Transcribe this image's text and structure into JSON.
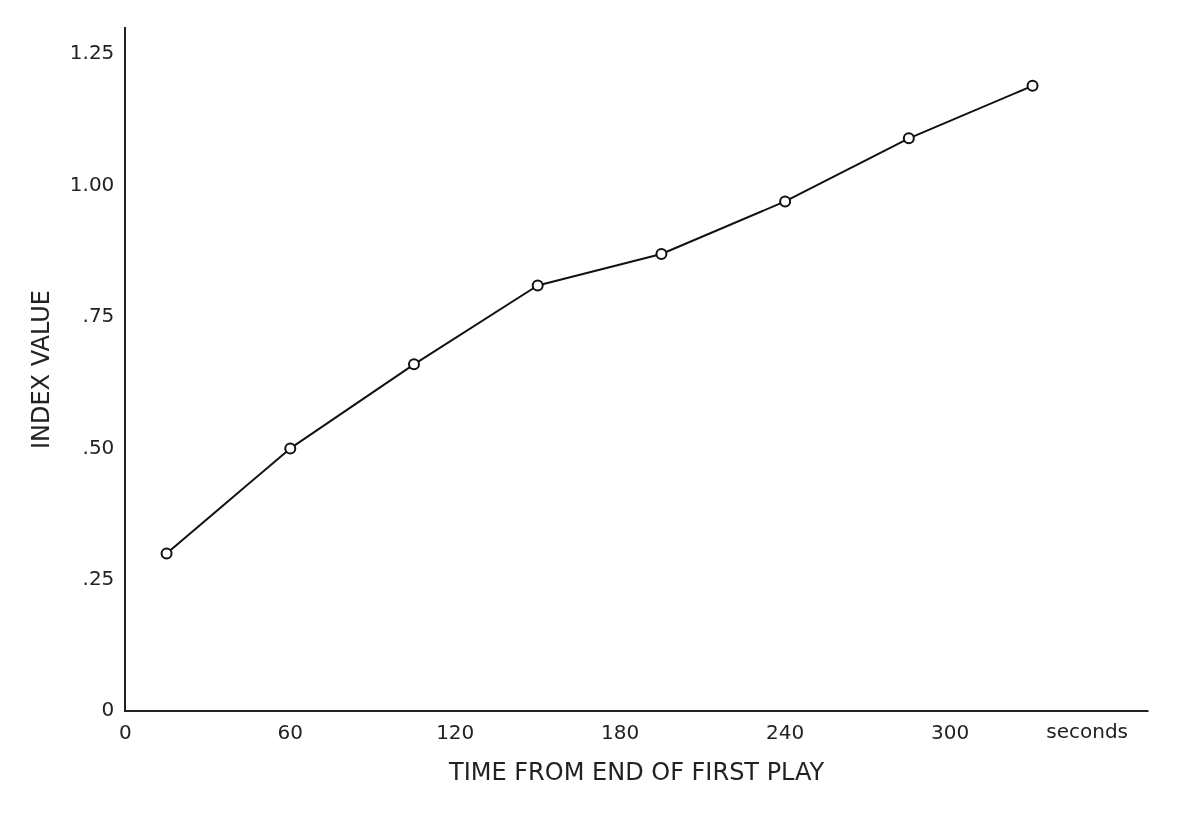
{
  "chart_data": {
    "type": "line",
    "xlabel": "TIME FROM END OF FIRST PLAY",
    "ylabel": "INDEX VALUE",
    "x": [
      15,
      60,
      105,
      150,
      195,
      240,
      285,
      330
    ],
    "values": [
      0.3,
      0.5,
      0.66,
      0.81,
      0.87,
      0.97,
      1.09,
      1.19
    ],
    "color": "#111111",
    "marker": "circle",
    "line_style": "solid",
    "grid": false,
    "legend": false,
    "xlim": [
      0,
      372
    ],
    "xticks": [
      0,
      60,
      120,
      180,
      240,
      300
    ],
    "ylim": [
      0,
      1.3
    ],
    "yticks": [
      {
        "value": 0,
        "label": "0"
      },
      {
        "value": 0.25,
        "label": ".25"
      },
      {
        "value": 0.5,
        "label": ".50"
      },
      {
        "value": 0.75,
        "label": ".75"
      },
      {
        "value": 1,
        "label": "1.00"
      },
      {
        "value": 1.25,
        "label": "1.25"
      }
    ],
    "annotations": [
      "seconds"
    ]
  }
}
